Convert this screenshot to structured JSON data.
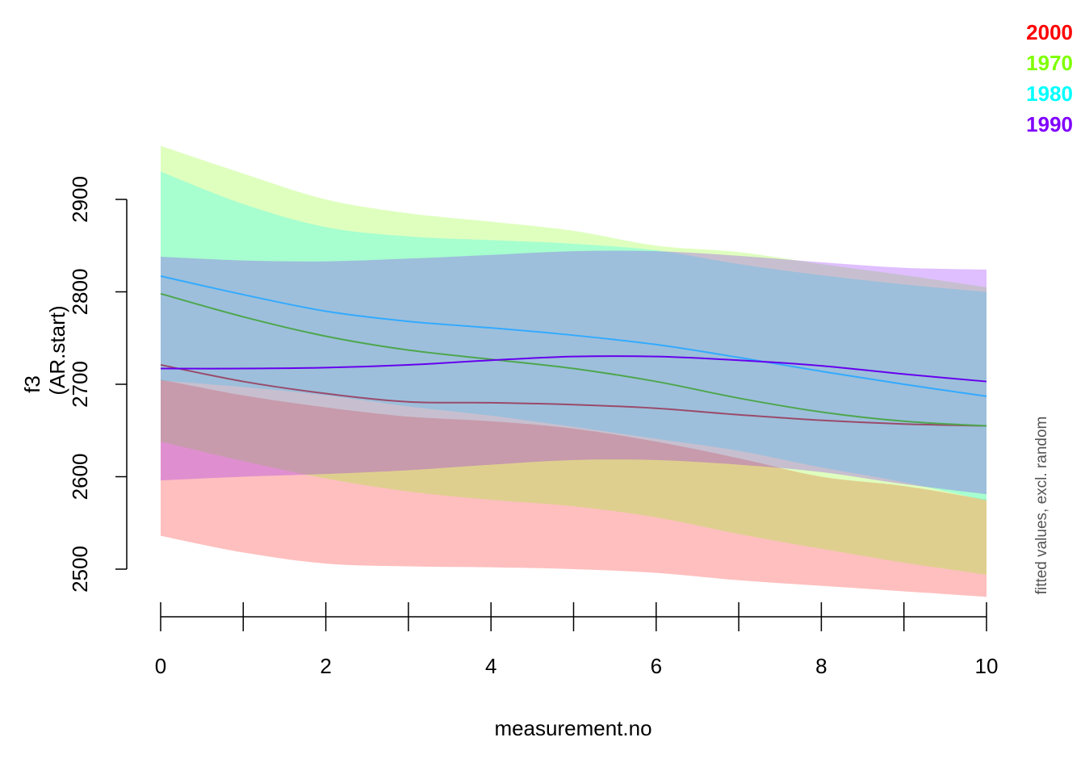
{
  "chart_data": {
    "type": "line",
    "title": "",
    "xlabel": "measurement.no",
    "ylabel": [
      "f3",
      "(AR.start)"
    ],
    "side_note": "fitted values, excl. random",
    "xlim": [
      0,
      10
    ],
    "ylim": [
      2500,
      2900
    ],
    "x_ticks": [
      0,
      2,
      4,
      6,
      8,
      10
    ],
    "x_minor_ticks": [
      0,
      1,
      2,
      3,
      4,
      5,
      6,
      7,
      8,
      9,
      10
    ],
    "y_ticks": [
      2500,
      2600,
      2700,
      2800,
      2900
    ],
    "legend_position": "top-right",
    "x": [
      0,
      1,
      2,
      3,
      4,
      5,
      6,
      7,
      8,
      9,
      10
    ],
    "series": [
      {
        "name": "2000",
        "color": "#ff0000",
        "band_fill": "rgba(255,0,0,0.25)",
        "line_color": "#9a4a6a",
        "fit": [
          2721,
          2703,
          2690,
          2681,
          2680,
          2678,
          2674,
          2667,
          2661,
          2657,
          2655
        ],
        "upper": [
          2705,
          2688,
          2675,
          2665,
          2660,
          2652,
          2638,
          2620,
          2600,
          2590,
          2575
        ],
        "lower": [
          2536,
          2518,
          2506,
          2503,
          2502,
          2500,
          2496,
          2488,
          2482,
          2476,
          2470
        ]
      },
      {
        "name": "1970",
        "color": "#80ff00",
        "band_fill": "rgba(128,255,0,0.25)",
        "line_color": "#4ea64e",
        "fit": [
          2798,
          2773,
          2752,
          2737,
          2727,
          2717,
          2703,
          2685,
          2670,
          2660,
          2655
        ],
        "upper": [
          2958,
          2928,
          2900,
          2885,
          2876,
          2866,
          2850,
          2843,
          2830,
          2818,
          2805
        ],
        "lower": [
          2638,
          2617,
          2598,
          2584,
          2575,
          2568,
          2556,
          2538,
          2522,
          2507,
          2494
        ]
      },
      {
        "name": "1980",
        "color": "#00ffff",
        "band_fill": "rgba(0,255,255,0.25)",
        "line_color": "#33aaff",
        "fit": [
          2817,
          2797,
          2779,
          2768,
          2761,
          2753,
          2743,
          2729,
          2714,
          2700,
          2687
        ],
        "upper": [
          2930,
          2895,
          2870,
          2860,
          2856,
          2852,
          2845,
          2830,
          2818,
          2808,
          2800
        ],
        "lower": [
          2704,
          2697,
          2688,
          2676,
          2666,
          2654,
          2641,
          2628,
          2610,
          2594,
          2574
        ]
      },
      {
        "name": "1990",
        "color": "#8000ff",
        "band_fill": "rgba(128,0,255,0.25)",
        "line_color": "#6600ee",
        "fit": [
          2717,
          2717,
          2718,
          2721,
          2726,
          2730,
          2730,
          2726,
          2720,
          2711,
          2703
        ],
        "upper": [
          2838,
          2834,
          2833,
          2836,
          2840,
          2844,
          2844,
          2839,
          2832,
          2826,
          2824
        ],
        "lower": [
          2596,
          2600,
          2603,
          2607,
          2613,
          2618,
          2618,
          2613,
          2605,
          2592,
          2581
        ]
      }
    ]
  }
}
